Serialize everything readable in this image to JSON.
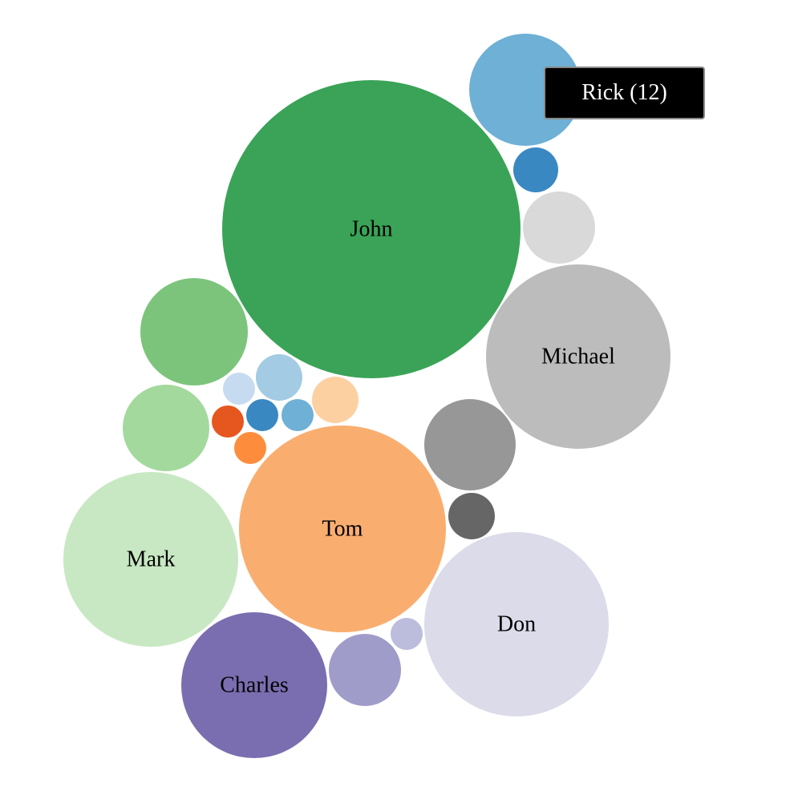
{
  "chart_data": {
    "type": "bubble",
    "title": "",
    "bubbles": [
      {
        "label": "John",
        "color": "#3aa357"
      },
      {
        "label": "Tom",
        "color": "#f9ae70"
      },
      {
        "label": "Michael",
        "color": "#bcbcbc"
      },
      {
        "label": "Don",
        "color": "#dbdbea"
      },
      {
        "label": "Mark",
        "color": "#c8e8c3"
      },
      {
        "label": "Charles",
        "color": "#7a6eb0"
      },
      {
        "label": "",
        "color": "#6eb0d6"
      },
      {
        "label": "",
        "color": "#7cc47c"
      },
      {
        "label": "",
        "color": "#979797"
      },
      {
        "label": "",
        "color": "#a3d99d"
      },
      {
        "label": "",
        "color": "#9f9cc9"
      },
      {
        "label": "",
        "color": "#d9d9d9"
      },
      {
        "label": "",
        "color": "#a3cbe3"
      },
      {
        "label": "",
        "color": "#fdd0a2"
      },
      {
        "label": "",
        "color": "#666666"
      },
      {
        "label": "",
        "color": "#3a88c2"
      },
      {
        "label": "",
        "color": "#3a88c2"
      },
      {
        "label": "",
        "color": "#6eb0d6"
      },
      {
        "label": "",
        "color": "#c6dbef"
      },
      {
        "label": "",
        "color": "#e6561f"
      },
      {
        "label": "",
        "color": "#fd8d3c"
      },
      {
        "label": "",
        "color": "#bcbcdc"
      }
    ],
    "tooltip": "Rick (12)"
  }
}
